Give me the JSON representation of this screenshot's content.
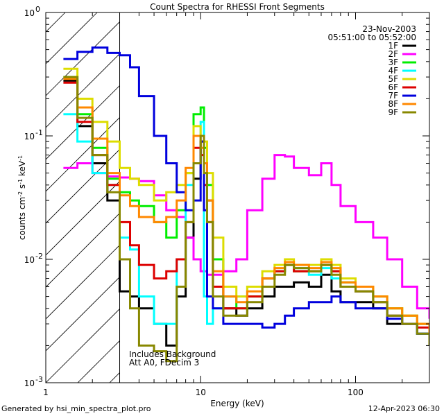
{
  "chart_data": {
    "type": "line",
    "title": "Count Spectra for RHESSI Front Segments",
    "xlabel": "Energy (keV)",
    "ylabel_parts": [
      "counts cm",
      "-2",
      " s",
      "-1",
      " keV",
      "-1"
    ],
    "xscale": "log",
    "yscale": "log",
    "xlim": [
      1,
      300
    ],
    "ylim": [
      0.001,
      1
    ],
    "x_ticks": [
      {
        "v": 1,
        "label": "1"
      },
      {
        "v": 10,
        "label": "10"
      },
      {
        "v": 100,
        "label": "100"
      }
    ],
    "y_ticks": [
      {
        "v": 1,
        "base": "10",
        "exp": "0"
      },
      {
        "v": 0.1,
        "base": "10",
        "exp": "-1"
      },
      {
        "v": 0.01,
        "base": "10",
        "exp": "-2"
      },
      {
        "v": 0.001,
        "base": "10",
        "exp": "-3"
      }
    ],
    "date": "23-Nov-2003",
    "time_range": "05:51:00 to 05:52:00",
    "annotation_lines": [
      "Includes Background",
      "Att A0, FDecim 3"
    ],
    "hatched_region_max_keV": 3,
    "energy_bins": [
      1.3,
      1.6,
      2.0,
      2.5,
      3.0,
      3.5,
      4.0,
      5.0,
      6.0,
      7.0,
      8.0,
      9.0,
      10.0,
      10.5,
      11.0,
      12.0,
      14.0,
      17.0,
      20.0,
      25.0,
      30.0,
      35.0,
      40.0,
      50.0,
      60.0,
      70.0,
      80.0,
      100.0,
      130.0,
      160.0,
      200.0,
      250.0,
      300.0
    ],
    "series": [
      {
        "name": "1F",
        "color": "#000000",
        "values": [
          0.28,
          0.12,
          0.06,
          0.03,
          0.0055,
          0.005,
          0.004,
          0.003,
          0.002,
          0.005,
          0.015,
          0.045,
          0.09,
          0.06,
          0.03,
          0.01,
          0.004,
          0.0035,
          0.004,
          0.005,
          0.006,
          0.006,
          0.0065,
          0.006,
          0.0075,
          0.0055,
          0.0045,
          0.0045,
          0.004,
          0.003,
          0.003,
          0.0025,
          0.002
        ]
      },
      {
        "name": "2F",
        "color": "#ff00ff",
        "values": [
          0.055,
          0.06,
          0.05,
          0.047,
          0.046,
          0.045,
          0.043,
          0.033,
          0.025,
          0.022,
          0.015,
          0.01,
          0.008,
          0.008,
          0.0075,
          0.0075,
          0.008,
          0.01,
          0.025,
          0.045,
          0.07,
          0.068,
          0.055,
          0.048,
          0.06,
          0.04,
          0.027,
          0.02,
          0.015,
          0.01,
          0.006,
          0.004,
          0.0033
        ]
      },
      {
        "name": "3F",
        "color": "#00ee00",
        "values": [
          0.3,
          0.15,
          0.08,
          0.045,
          0.035,
          0.03,
          0.027,
          0.02,
          0.015,
          0.025,
          0.05,
          0.15,
          0.17,
          0.08,
          0.04,
          0.01,
          0.005,
          0.004,
          0.005,
          0.007,
          0.008,
          0.009,
          0.008,
          0.008,
          0.009,
          0.008,
          0.0065,
          0.006,
          0.005,
          0.004,
          0.0035,
          0.003,
          0.002
        ]
      },
      {
        "name": "4F",
        "color": "#00ffff",
        "values": [
          0.15,
          0.09,
          0.05,
          0.04,
          0.015,
          0.012,
          0.005,
          0.003,
          0.003,
          0.01,
          0.04,
          0.1,
          0.13,
          0.005,
          0.003,
          0.004,
          0.005,
          0.005,
          0.006,
          0.007,
          0.008,
          0.009,
          0.0085,
          0.0075,
          0.0085,
          0.007,
          0.006,
          0.0055,
          0.0045,
          0.0035,
          0.003,
          0.0025,
          0.002
        ]
      },
      {
        "name": "5F",
        "color": "#dddd00",
        "values": [
          0.35,
          0.2,
          0.13,
          0.09,
          0.055,
          0.045,
          0.04,
          0.03,
          0.035,
          0.04,
          0.05,
          0.12,
          0.1,
          0.09,
          0.05,
          0.015,
          0.006,
          0.005,
          0.006,
          0.008,
          0.009,
          0.01,
          0.009,
          0.009,
          0.01,
          0.009,
          0.007,
          0.006,
          0.005,
          0.004,
          0.0035,
          0.003,
          0.002
        ]
      },
      {
        "name": "6F",
        "color": "#dd0000",
        "values": [
          0.27,
          0.13,
          0.07,
          0.04,
          0.02,
          0.013,
          0.009,
          0.007,
          0.008,
          0.01,
          0.02,
          0.08,
          0.07,
          0.04,
          0.02,
          0.006,
          0.004,
          0.004,
          0.005,
          0.007,
          0.008,
          0.009,
          0.008,
          0.008,
          0.009,
          0.008,
          0.006,
          0.0055,
          0.0045,
          0.0035,
          0.003,
          0.0028,
          0.002
        ]
      },
      {
        "name": "7F",
        "color": "#0000dd",
        "values": [
          0.42,
          0.48,
          0.52,
          0.47,
          0.45,
          0.36,
          0.21,
          0.1,
          0.06,
          0.035,
          0.025,
          0.03,
          0.09,
          0.025,
          0.005,
          0.004,
          0.003,
          0.003,
          0.003,
          0.0028,
          0.003,
          0.0035,
          0.004,
          0.0045,
          0.0045,
          0.005,
          0.0045,
          0.004,
          0.004,
          0.0033,
          0.003,
          0.0025,
          0.002
        ]
      },
      {
        "name": "8F",
        "color": "#ff8800",
        "values": [
          0.29,
          0.17,
          0.095,
          0.05,
          0.033,
          0.027,
          0.022,
          0.02,
          0.022,
          0.03,
          0.055,
          0.1,
          0.08,
          0.06,
          0.03,
          0.008,
          0.005,
          0.0045,
          0.0055,
          0.007,
          0.0085,
          0.0095,
          0.009,
          0.0085,
          0.0095,
          0.0085,
          0.0065,
          0.006,
          0.005,
          0.004,
          0.0035,
          0.003,
          0.002
        ]
      },
      {
        "name": "9F",
        "color": "#888800",
        "values": [
          0.3,
          0.14,
          0.07,
          0.035,
          0.01,
          0.004,
          0.002,
          0.0018,
          0.0015,
          0.006,
          0.02,
          0.06,
          0.1,
          0.05,
          0.02,
          0.005,
          0.0035,
          0.0035,
          0.0045,
          0.006,
          0.0075,
          0.009,
          0.0085,
          0.008,
          0.009,
          0.0075,
          0.006,
          0.0055,
          0.0045,
          0.0035,
          0.003,
          0.0025,
          0.002
        ]
      }
    ]
  },
  "footer": {
    "generated_by": "Generated by hsi_min_spectra_plot.pro",
    "timestamp": "12-Apr-2023 06:30"
  }
}
